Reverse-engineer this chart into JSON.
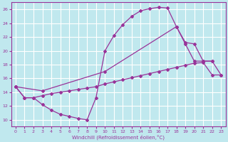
{
  "bg_color": "#c0e8ee",
  "grid_color": "#ffffff",
  "line_color": "#993399",
  "xlabel": "Windchill (Refroidissement éolien,°C)",
  "xlim": [
    -0.5,
    23.5
  ],
  "ylim": [
    9.0,
    27.0
  ],
  "yticks": [
    10,
    12,
    14,
    16,
    18,
    20,
    22,
    24,
    26
  ],
  "xticks": [
    0,
    1,
    2,
    3,
    4,
    5,
    6,
    7,
    8,
    9,
    10,
    11,
    12,
    13,
    14,
    15,
    16,
    17,
    18,
    19,
    20,
    21,
    22,
    23
  ],
  "curve1_x": [
    0,
    1,
    2,
    3,
    4,
    5,
    6,
    7,
    8,
    9,
    10,
    11,
    12,
    13,
    14,
    15,
    16,
    17,
    18,
    19,
    20,
    21,
    22
  ],
  "curve1_y": [
    14.8,
    13.2,
    13.2,
    12.2,
    11.4,
    10.8,
    10.5,
    10.2,
    10.0,
    13.2,
    20.0,
    22.2,
    23.8,
    25.0,
    25.8,
    26.1,
    26.3,
    26.2,
    23.5,
    21.0,
    18.5,
    18.5,
    18.5
  ],
  "curve2_x": [
    0,
    3,
    10,
    18,
    19,
    20,
    21,
    22,
    23
  ],
  "curve2_y": [
    14.8,
    14.2,
    17.0,
    23.5,
    21.2,
    21.0,
    18.5,
    18.5,
    16.5
  ],
  "curve3_x": [
    0,
    1,
    2,
    3,
    4,
    5,
    6,
    7,
    8,
    9,
    10,
    11,
    12,
    13,
    14,
    15,
    16,
    17,
    18,
    19,
    20,
    21,
    22,
    23
  ],
  "curve3_y": [
    14.8,
    13.2,
    13.2,
    13.5,
    13.8,
    14.0,
    14.2,
    14.4,
    14.6,
    14.8,
    15.2,
    15.5,
    15.8,
    16.1,
    16.4,
    16.7,
    17.0,
    17.3,
    17.6,
    17.9,
    18.2,
    18.3,
    16.5,
    16.5
  ]
}
